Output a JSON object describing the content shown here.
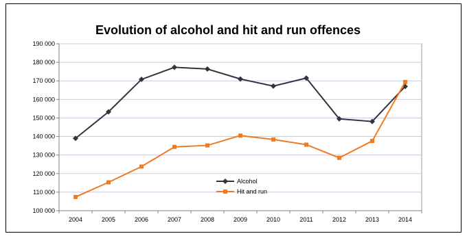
{
  "chart_data": {
    "type": "line",
    "title": "Evolution of alcohol and hit and run offences",
    "xlabel": "",
    "ylabel": "",
    "x": [
      "2004",
      "2005",
      "2006",
      "2007",
      "2008",
      "2009",
      "2010",
      "2011",
      "2012",
      "2013",
      "2014"
    ],
    "ylim": [
      100000,
      190000
    ],
    "yticks": [
      "100 000",
      "110 000",
      "120 000",
      "130 000",
      "140 000",
      "150 000",
      "160 000",
      "170 000",
      "180 000",
      "190 000"
    ],
    "grid": true,
    "legend_position": "inside-bottom-center",
    "series": [
      {
        "name": "Alcohol",
        "color": "#333340",
        "marker": "diamond",
        "values": [
          139000,
          153300,
          170800,
          177300,
          176400,
          171000,
          167200,
          171500,
          149500,
          148100,
          167000
        ]
      },
      {
        "name": "Hit and run",
        "color": "#f07a20",
        "marker": "square",
        "values": [
          107400,
          115300,
          123800,
          134400,
          135200,
          140500,
          138400,
          135600,
          128500,
          137600,
          169400
        ]
      }
    ]
  }
}
